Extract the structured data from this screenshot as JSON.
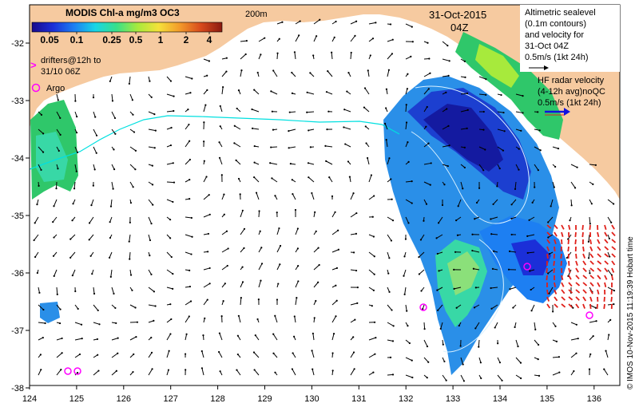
{
  "colorbar": {
    "title": "MODIS Chl-a mg/m3 OC3",
    "ticks": [
      "0.05",
      "0.1",
      "0.25",
      "0.5",
      "1",
      "2",
      "4"
    ],
    "gradient_colors": [
      "#1a0a8c",
      "#1b2fd8",
      "#1d7ff2",
      "#18d6e6",
      "#38e08a",
      "#a7ea3c",
      "#f5e13a",
      "#f39a2a",
      "#d84a1c",
      "#8a1a10"
    ]
  },
  "map": {
    "contour_label": "200m",
    "date": "31-Oct-2015",
    "time": "04Z",
    "x_ticks": [
      "124",
      "125",
      "126",
      "127",
      "128",
      "129",
      "130",
      "131",
      "132",
      "133",
      "134",
      "135",
      "136"
    ],
    "y_ticks": [
      "-32",
      "-33",
      "-34",
      "-35",
      "-36",
      "-37",
      "-38"
    ],
    "credit": "© IMOS 10-Nov-2015 11:19:39 Hobart time",
    "colors": {
      "land": "#f6caa0",
      "ocean": "#ffffff",
      "drifter": "#ff00ff",
      "hf_radar": "#e0201a",
      "legend_blue": "#1010e0",
      "contour": "#00e0e0"
    }
  },
  "legend": {
    "drifters": [
      "drifters@12h to",
      "31/10 06Z"
    ],
    "drifter_symbol": ">",
    "argo": "Argo",
    "altimetric": [
      "Altimetric sealevel",
      "(0.1m contours)",
      "and velocity for",
      "31-Oct 04Z",
      "0.5m/s (1kt 24h)"
    ],
    "hf_radar": [
      "HF radar velocity",
      "(4-12h avg)noQC",
      "0.5m/s (1kt 24h)"
    ]
  }
}
